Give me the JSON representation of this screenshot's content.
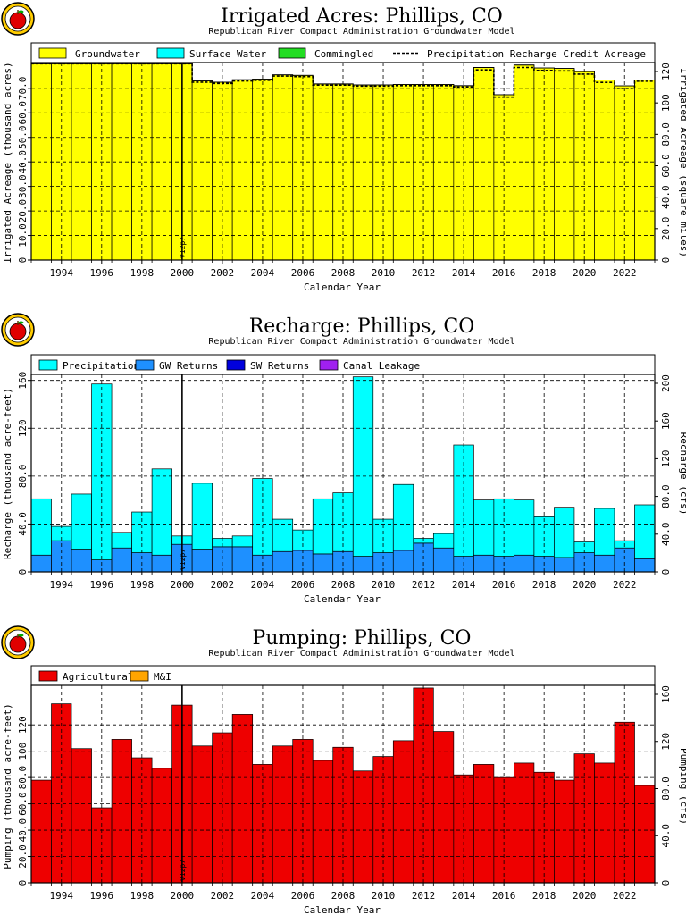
{
  "colors": {
    "groundwater": "#ffff00",
    "surface_water": "#00ffff",
    "commingled": "#22dd22",
    "precipitation": "#00ffff",
    "gw_returns": "#1e90ff",
    "sw_returns": "#0000dd",
    "canal_leakage": "#a020f0",
    "agricultural": "#ee0000",
    "mi": "#ffa500"
  },
  "logo": {
    "name": "apple-logo-icon"
  },
  "chart_data": [
    {
      "type": "bar",
      "title": "Irrigated Acres: Phillips, CO",
      "subtitle": "Republican River Compact Administration Groundwater Model",
      "xlabel": "Calendar Year",
      "ylabel": "Irrigated Acreage (thousand acres)",
      "ylabel_right": "Irrigated Acreage (square miles)",
      "version_label": "V12p7",
      "version_year": 2000.5,
      "xlim": [
        1993,
        2024
      ],
      "ylim": [
        0,
        80.5
      ],
      "yticks": [
        "0",
        "10.0",
        "20.0",
        "30.0",
        "40.0",
        "50.0",
        "60.0",
        "70.0"
      ],
      "yticks_right": [
        "0",
        "20.0",
        "40.0",
        "60.0",
        "80.0",
        "100",
        "120"
      ],
      "xticks": [
        "1994",
        "1996",
        "1998",
        "2000",
        "2002",
        "2004",
        "2006",
        "2008",
        "2010",
        "2012",
        "2014",
        "2016",
        "2018",
        "2020",
        "2022"
      ],
      "legend": [
        "Groundwater",
        "Surface Water",
        "Commingled",
        "Precipitation Recharge Credit Acreage"
      ],
      "categories": [
        1993,
        1994,
        1995,
        1996,
        1997,
        1998,
        1999,
        2000,
        2001,
        2002,
        2003,
        2004,
        2005,
        2006,
        2007,
        2008,
        2009,
        2010,
        2011,
        2012,
        2013,
        2014,
        2015,
        2016,
        2017,
        2018,
        2019,
        2020,
        2021,
        2022,
        2023
      ],
      "series": [
        {
          "name": "Groundwater",
          "values": [
            80.0,
            80.0,
            80.0,
            80.0,
            80.0,
            80.0,
            80.0,
            80.0,
            73.0,
            72.5,
            73.5,
            73.8,
            75.5,
            75.3,
            71.8,
            71.8,
            71.4,
            71.4,
            71.6,
            71.6,
            71.6,
            71.1,
            78.5,
            67.4,
            79.5,
            78.3,
            78.1,
            76.8,
            73.4,
            71.0,
            73.4
          ]
        },
        {
          "name": "Precipitation Recharge Credit Acreage",
          "values": [
            80.0,
            80.0,
            80.0,
            80.0,
            80.0,
            80.0,
            80.0,
            80.0,
            72.5,
            72.0,
            73.0,
            73.3,
            75.0,
            74.8,
            71.3,
            71.3,
            70.9,
            70.9,
            71.1,
            71.1,
            71.1,
            70.6,
            77.5,
            66.4,
            78.5,
            77.3,
            77.1,
            75.8,
            72.4,
            70.0,
            72.9
          ]
        }
      ]
    },
    {
      "type": "bar",
      "title": "Recharge: Phillips, CO",
      "subtitle": "Republican River Compact Administration Groundwater Model",
      "xlabel": "Calendar Year",
      "ylabel": "Recharge (thousand acre-feet)",
      "ylabel_right": "Recharge (cfs)",
      "version_label": "V12p7",
      "version_year": 2000.5,
      "xlim": [
        1993,
        2024
      ],
      "ylim": [
        0,
        165
      ],
      "yticks": [
        "0",
        "40.0",
        "80.0",
        "120",
        "160"
      ],
      "yticks_right": [
        "0",
        "40.0",
        "80.0",
        "120",
        "160",
        "200"
      ],
      "xticks": [
        "1994",
        "1996",
        "1998",
        "2000",
        "2002",
        "2004",
        "2006",
        "2008",
        "2010",
        "2012",
        "2014",
        "2016",
        "2018",
        "2020",
        "2022"
      ],
      "legend": [
        "Precipitation",
        "GW Returns",
        "SW Returns",
        "Canal Leakage"
      ],
      "categories": [
        1993,
        1994,
        1995,
        1996,
        1997,
        1998,
        1999,
        2000,
        2001,
        2002,
        2003,
        2004,
        2005,
        2006,
        2007,
        2008,
        2009,
        2010,
        2011,
        2012,
        2013,
        2014,
        2015,
        2016,
        2017,
        2018,
        2019,
        2020,
        2021,
        2022,
        2023
      ],
      "series": [
        {
          "name": "GW Returns",
          "values": [
            14,
            26,
            19,
            10,
            20,
            16,
            14,
            23,
            19,
            21,
            21,
            14,
            17,
            18,
            15,
            17,
            13,
            16,
            18,
            24,
            20,
            13,
            14,
            13,
            14,
            13,
            12,
            16,
            14,
            20,
            11
          ]
        },
        {
          "name": "Precipitation",
          "values": [
            47,
            12,
            46,
            147,
            13,
            34,
            72,
            7,
            55,
            7,
            9,
            64,
            27,
            17,
            46,
            49,
            150,
            28,
            55,
            4,
            12,
            93,
            46,
            48,
            46,
            33,
            42,
            9,
            39,
            6,
            45
          ]
        }
      ]
    },
    {
      "type": "bar",
      "title": "Pumping: Phillips, CO",
      "subtitle": "Republican River Compact Administration Groundwater Model",
      "xlabel": "Calendar Year",
      "ylabel": "Pumping (thousand acre-feet)",
      "ylabel_right": "Pumping (cfs)",
      "version_label": "V12p7",
      "version_year": 2000.5,
      "xlim": [
        1993,
        2024
      ],
      "ylim": [
        0,
        150
      ],
      "yticks": [
        "0",
        "20.0",
        "40.0",
        "60.0",
        "80.0",
        "100",
        "120"
      ],
      "yticks_right": [
        "0",
        "40.0",
        "80.0",
        "120",
        "160"
      ],
      "xticks": [
        "1994",
        "1996",
        "1998",
        "2000",
        "2002",
        "2004",
        "2006",
        "2008",
        "2010",
        "2012",
        "2014",
        "2016",
        "2018",
        "2020",
        "2022"
      ],
      "legend": [
        "Agricultural",
        "M&I"
      ],
      "categories": [
        1993,
        1994,
        1995,
        1996,
        1997,
        1998,
        1999,
        2000,
        2001,
        2002,
        2003,
        2004,
        2005,
        2006,
        2007,
        2008,
        2009,
        2010,
        2011,
        2012,
        2013,
        2014,
        2015,
        2016,
        2017,
        2018,
        2019,
        2020,
        2021,
        2022,
        2023
      ],
      "series": [
        {
          "name": "Agricultural",
          "values": [
            78,
            136,
            102,
            57,
            109,
            95,
            87,
            135,
            104,
            114,
            128,
            90,
            104,
            109,
            93,
            103,
            85,
            96,
            108,
            148,
            115,
            82,
            90,
            80,
            91,
            84,
            78,
            98,
            91,
            122,
            74
          ]
        },
        {
          "name": "M&I",
          "values": [
            0,
            0,
            0,
            0,
            0,
            0,
            0,
            0,
            0,
            0,
            0,
            0,
            0,
            0,
            0,
            0,
            0,
            0,
            0,
            0,
            0,
            0,
            0,
            0,
            0,
            0,
            0,
            0,
            0,
            0,
            0
          ]
        }
      ]
    }
  ]
}
